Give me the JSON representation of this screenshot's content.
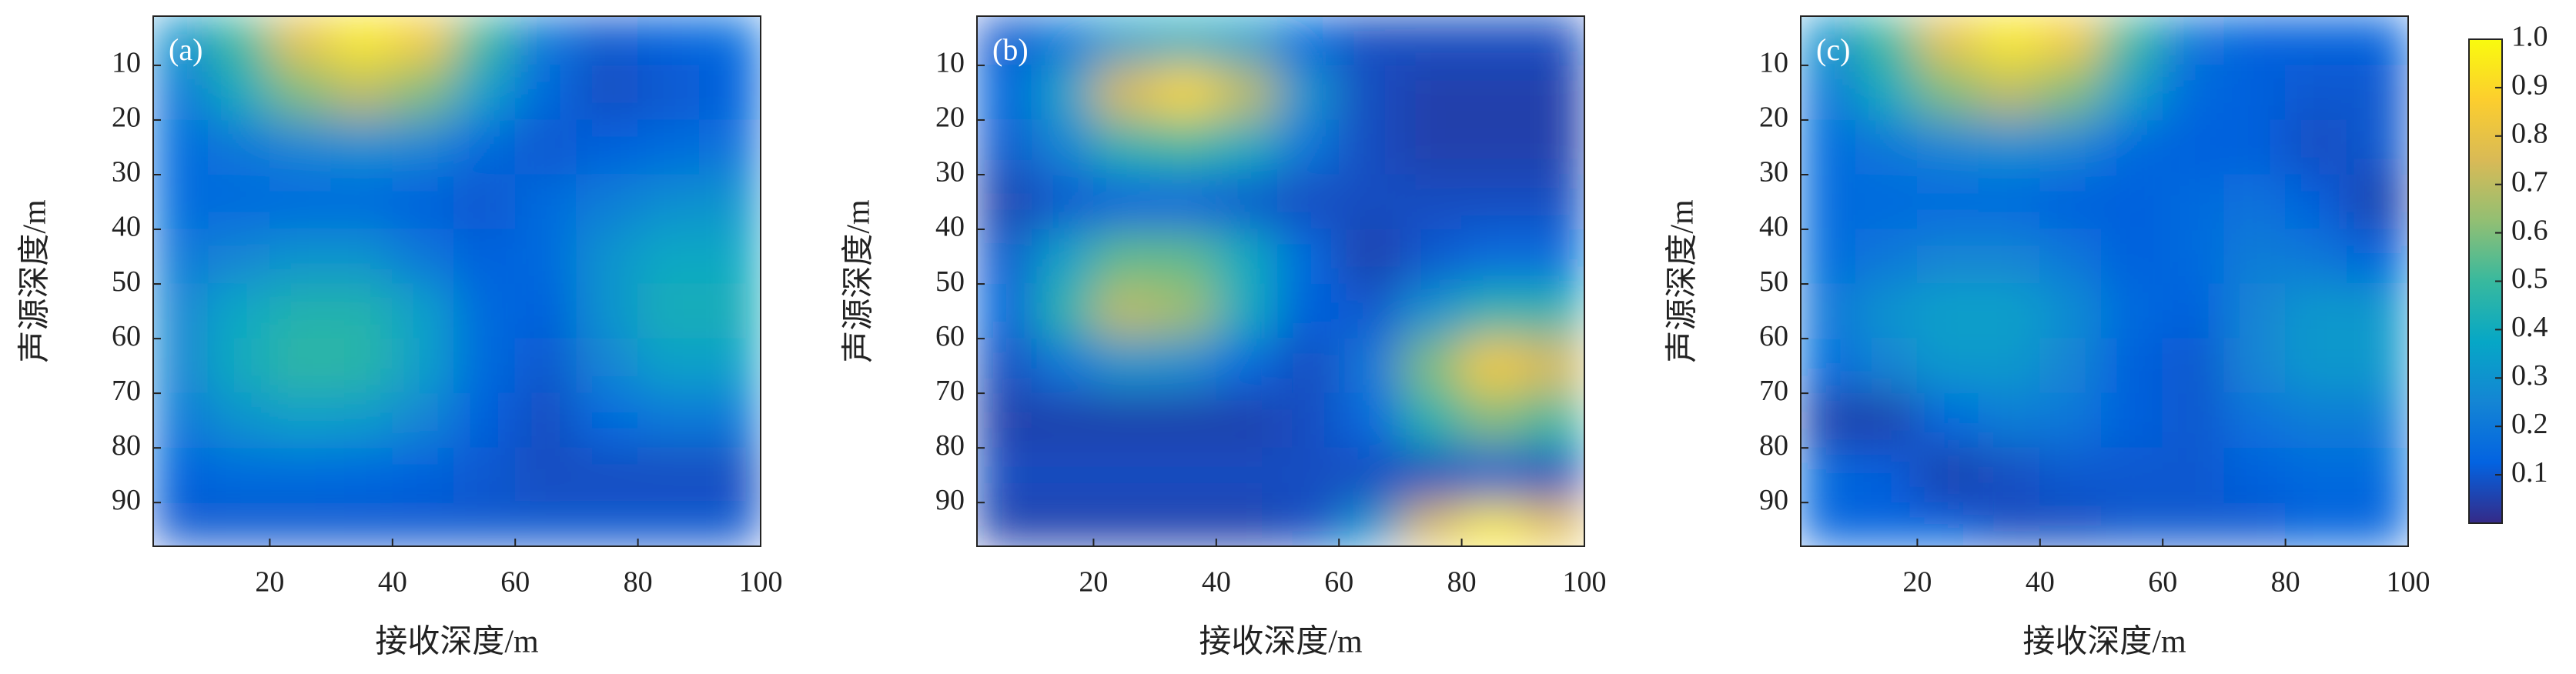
{
  "chart_data": [
    {
      "type": "heatmap",
      "annotation": "(a)",
      "xlabel": "接收深度/m",
      "ylabel": "声源深度/m",
      "xlim": [
        1,
        100
      ],
      "ylim": [
        98,
        1
      ],
      "xticks": [
        20,
        40,
        60,
        80,
        100
      ],
      "yticks": [
        10,
        20,
        30,
        40,
        50,
        60,
        70,
        80,
        90
      ],
      "x": [
        5,
        15,
        25,
        35,
        45,
        55,
        65,
        75,
        85,
        95
      ],
      "y": [
        5,
        15,
        25,
        35,
        45,
        55,
        65,
        75,
        85,
        95
      ],
      "values": [
        [
          0.3,
          0.5,
          0.8,
          0.95,
          0.85,
          0.5,
          0.2,
          0.1,
          0.12,
          0.15
        ],
        [
          0.2,
          0.4,
          0.6,
          0.7,
          0.6,
          0.35,
          0.15,
          0.08,
          0.1,
          0.12
        ],
        [
          0.15,
          0.2,
          0.25,
          0.28,
          0.25,
          0.15,
          0.1,
          0.12,
          0.15,
          0.18
        ],
        [
          0.15,
          0.15,
          0.15,
          0.15,
          0.12,
          0.1,
          0.15,
          0.22,
          0.28,
          0.3
        ],
        [
          0.2,
          0.25,
          0.3,
          0.3,
          0.2,
          0.12,
          0.15,
          0.3,
          0.38,
          0.38
        ],
        [
          0.25,
          0.38,
          0.45,
          0.45,
          0.35,
          0.15,
          0.12,
          0.3,
          0.42,
          0.42
        ],
        [
          0.25,
          0.4,
          0.48,
          0.47,
          0.35,
          0.15,
          0.1,
          0.25,
          0.35,
          0.35
        ],
        [
          0.2,
          0.3,
          0.35,
          0.33,
          0.25,
          0.12,
          0.08,
          0.15,
          0.2,
          0.2
        ],
        [
          0.12,
          0.15,
          0.15,
          0.14,
          0.12,
          0.1,
          0.08,
          0.08,
          0.08,
          0.08
        ],
        [
          0.1,
          0.1,
          0.1,
          0.1,
          0.1,
          0.1,
          0.1,
          0.1,
          0.1,
          0.1
        ]
      ]
    },
    {
      "type": "heatmap",
      "annotation": "(b)",
      "xlabel": "接收深度/m",
      "ylabel": "声源深度/m",
      "xlim": [
        1,
        100
      ],
      "ylim": [
        98,
        1
      ],
      "xticks": [
        20,
        40,
        60,
        80,
        100
      ],
      "yticks": [
        10,
        20,
        30,
        40,
        50,
        60,
        70,
        80,
        90
      ],
      "x": [
        5,
        15,
        25,
        35,
        45,
        55,
        65,
        75,
        85,
        95
      ],
      "y": [
        5,
        15,
        25,
        35,
        45,
        55,
        65,
        75,
        85,
        95
      ],
      "values": [
        [
          0.1,
          0.2,
          0.35,
          0.4,
          0.35,
          0.15,
          0.08,
          0.08,
          0.08,
          0.08
        ],
        [
          0.12,
          0.35,
          0.75,
          0.9,
          0.7,
          0.3,
          0.08,
          0.05,
          0.05,
          0.05
        ],
        [
          0.1,
          0.25,
          0.45,
          0.5,
          0.4,
          0.2,
          0.08,
          0.05,
          0.05,
          0.05
        ],
        [
          0.05,
          0.1,
          0.12,
          0.12,
          0.1,
          0.08,
          0.08,
          0.08,
          0.08,
          0.08
        ],
        [
          0.1,
          0.35,
          0.55,
          0.55,
          0.4,
          0.15,
          0.05,
          0.1,
          0.15,
          0.15
        ],
        [
          0.12,
          0.45,
          0.7,
          0.65,
          0.4,
          0.12,
          0.1,
          0.3,
          0.45,
          0.45
        ],
        [
          0.08,
          0.2,
          0.3,
          0.28,
          0.15,
          0.08,
          0.2,
          0.6,
          0.85,
          0.75
        ],
        [
          0.05,
          0.05,
          0.05,
          0.05,
          0.05,
          0.08,
          0.15,
          0.45,
          0.6,
          0.5
        ],
        [
          0.08,
          0.08,
          0.08,
          0.08,
          0.08,
          0.08,
          0.08,
          0.08,
          0.1,
          0.08
        ],
        [
          0.05,
          0.05,
          0.05,
          0.05,
          0.05,
          0.08,
          0.3,
          0.75,
          0.95,
          0.8
        ]
      ]
    },
    {
      "type": "heatmap",
      "annotation": "(c)",
      "xlabel": "接收深度/m",
      "ylabel": "声源深度/m",
      "xlim": [
        1,
        100
      ],
      "ylim": [
        98,
        1
      ],
      "xticks": [
        20,
        40,
        60,
        80,
        100
      ],
      "yticks": [
        10,
        20,
        30,
        40,
        50,
        60,
        70,
        80,
        90
      ],
      "x": [
        5,
        15,
        25,
        35,
        45,
        55,
        65,
        75,
        85,
        95
      ],
      "y": [
        5,
        15,
        25,
        35,
        45,
        55,
        65,
        75,
        85,
        95
      ],
      "values": [
        [
          0.3,
          0.5,
          0.8,
          0.95,
          0.85,
          0.5,
          0.2,
          0.12,
          0.12,
          0.12
        ],
        [
          0.2,
          0.4,
          0.6,
          0.7,
          0.6,
          0.35,
          0.15,
          0.12,
          0.1,
          0.1
        ],
        [
          0.15,
          0.2,
          0.25,
          0.28,
          0.25,
          0.15,
          0.12,
          0.12,
          0.08,
          0.1
        ],
        [
          0.15,
          0.15,
          0.15,
          0.15,
          0.12,
          0.12,
          0.15,
          0.18,
          0.12,
          0.05
        ],
        [
          0.15,
          0.2,
          0.25,
          0.25,
          0.2,
          0.12,
          0.15,
          0.22,
          0.2,
          0.12
        ],
        [
          0.2,
          0.3,
          0.35,
          0.35,
          0.28,
          0.15,
          0.12,
          0.25,
          0.32,
          0.32
        ],
        [
          0.15,
          0.25,
          0.32,
          0.32,
          0.25,
          0.12,
          0.1,
          0.25,
          0.32,
          0.32
        ],
        [
          0.05,
          0.05,
          0.15,
          0.22,
          0.2,
          0.12,
          0.1,
          0.18,
          0.22,
          0.22
        ],
        [
          0.15,
          0.12,
          0.05,
          0.08,
          0.1,
          0.1,
          0.1,
          0.12,
          0.15,
          0.15
        ],
        [
          0.12,
          0.12,
          0.12,
          0.08,
          0.08,
          0.1,
          0.1,
          0.1,
          0.12,
          0.12
        ]
      ],
      "colorbar": {
        "lim": [
          0,
          1
        ],
        "ticks": [
          0.1,
          0.2,
          0.3,
          0.4,
          0.5,
          0.6,
          0.7,
          0.8,
          0.9,
          {
            "value": 1,
            "label": "1.0"
          }
        ],
        "colormap": [
          "#352a87",
          "#0363e1",
          "#1485d4",
          "#06a7c6",
          "#38b99e",
          "#92bf73",
          "#d9ba56",
          "#fcce2e",
          "#f9fb0e"
        ]
      }
    }
  ]
}
